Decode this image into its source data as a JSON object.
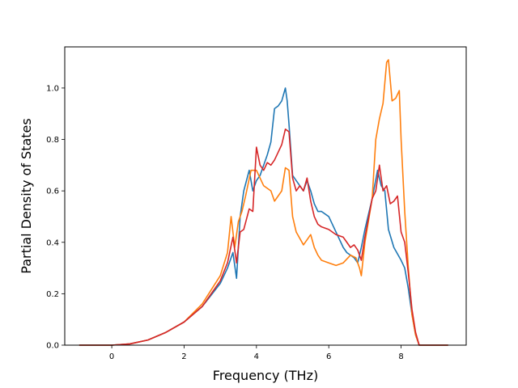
{
  "chart_data": {
    "type": "line",
    "title": "",
    "xlabel": "Frequency (THz)",
    "ylabel": "Partial Density of States",
    "xlim": [
      -1.3,
      9.8
    ],
    "ylim": [
      0.0,
      1.16
    ],
    "x_ticks": [
      0,
      2,
      4,
      6,
      8
    ],
    "x_tick_labels": [
      "0",
      "2",
      "4",
      "6",
      "8"
    ],
    "y_ticks": [
      0.0,
      0.2,
      0.4,
      0.6,
      0.8,
      1.0
    ],
    "y_tick_labels": [
      "0.0",
      "0.2",
      "0.4",
      "0.6",
      "0.8",
      "1.0"
    ],
    "grid": false,
    "legend": "none",
    "series": [
      {
        "color": "#1f77b4",
        "x": [
          -0.9,
          0.0,
          0.5,
          1.0,
          1.5,
          2.0,
          2.5,
          3.0,
          3.2,
          3.35,
          3.45,
          3.55,
          3.65,
          3.8,
          3.9,
          4.0,
          4.1,
          4.2,
          4.3,
          4.4,
          4.5,
          4.6,
          4.7,
          4.8,
          4.85,
          4.9,
          5.0,
          5.1,
          5.2,
          5.3,
          5.4,
          5.5,
          5.6,
          5.7,
          5.8,
          6.0,
          6.2,
          6.4,
          6.5,
          6.6,
          6.7,
          6.8,
          6.9,
          7.0,
          7.2,
          7.35,
          7.45,
          7.55,
          7.65,
          7.8,
          8.0,
          8.1,
          8.2,
          8.3,
          8.4,
          8.5,
          9.3
        ],
        "y": [
          0.0,
          0.0,
          0.005,
          0.02,
          0.05,
          0.09,
          0.15,
          0.24,
          0.3,
          0.36,
          0.26,
          0.5,
          0.6,
          0.68,
          0.6,
          0.64,
          0.66,
          0.7,
          0.74,
          0.79,
          0.92,
          0.93,
          0.95,
          1.0,
          0.95,
          0.86,
          0.66,
          0.64,
          0.62,
          0.6,
          0.64,
          0.6,
          0.55,
          0.52,
          0.52,
          0.5,
          0.44,
          0.38,
          0.36,
          0.35,
          0.34,
          0.32,
          0.38,
          0.45,
          0.57,
          0.68,
          0.62,
          0.6,
          0.45,
          0.38,
          0.33,
          0.3,
          0.22,
          0.12,
          0.04,
          0.0,
          0.0
        ]
      },
      {
        "color": "#ff7f0e",
        "x": [
          -0.9,
          0.0,
          0.5,
          1.0,
          1.5,
          2.0,
          2.5,
          3.0,
          3.2,
          3.3,
          3.4,
          3.5,
          3.6,
          3.7,
          3.85,
          4.0,
          4.2,
          4.4,
          4.5,
          4.6,
          4.7,
          4.8,
          4.9,
          5.0,
          5.1,
          5.3,
          5.5,
          5.6,
          5.7,
          5.8,
          6.0,
          6.2,
          6.4,
          6.6,
          6.75,
          6.85,
          6.9,
          7.0,
          7.2,
          7.3,
          7.4,
          7.5,
          7.6,
          7.65,
          7.75,
          7.85,
          7.95,
          8.0,
          8.1,
          8.2,
          8.3,
          8.4,
          8.5,
          9.3
        ],
        "y": [
          0.0,
          0.0,
          0.005,
          0.02,
          0.05,
          0.09,
          0.16,
          0.27,
          0.36,
          0.5,
          0.38,
          0.48,
          0.52,
          0.58,
          0.68,
          0.68,
          0.62,
          0.6,
          0.56,
          0.58,
          0.6,
          0.69,
          0.68,
          0.5,
          0.44,
          0.39,
          0.43,
          0.38,
          0.35,
          0.33,
          0.32,
          0.31,
          0.32,
          0.35,
          0.34,
          0.3,
          0.27,
          0.4,
          0.57,
          0.8,
          0.88,
          0.94,
          1.1,
          1.11,
          0.95,
          0.96,
          0.99,
          0.8,
          0.52,
          0.3,
          0.12,
          0.04,
          0.0,
          0.0
        ]
      },
      {
        "color": "#d62728",
        "x": [
          -0.9,
          0.0,
          0.5,
          1.0,
          1.5,
          2.0,
          2.5,
          3.0,
          3.2,
          3.35,
          3.45,
          3.55,
          3.65,
          3.8,
          3.9,
          4.0,
          4.1,
          4.2,
          4.3,
          4.4,
          4.5,
          4.6,
          4.7,
          4.8,
          4.9,
          5.0,
          5.1,
          5.2,
          5.3,
          5.4,
          5.5,
          5.6,
          5.7,
          5.8,
          6.0,
          6.2,
          6.4,
          6.5,
          6.6,
          6.7,
          6.8,
          6.9,
          7.0,
          7.2,
          7.3,
          7.4,
          7.5,
          7.6,
          7.7,
          7.8,
          7.9,
          8.0,
          8.1,
          8.2,
          8.3,
          8.4,
          8.5,
          9.3
        ],
        "y": [
          0.0,
          0.0,
          0.005,
          0.02,
          0.05,
          0.09,
          0.15,
          0.25,
          0.32,
          0.42,
          0.32,
          0.44,
          0.45,
          0.53,
          0.52,
          0.77,
          0.7,
          0.68,
          0.71,
          0.7,
          0.72,
          0.75,
          0.78,
          0.84,
          0.83,
          0.65,
          0.6,
          0.62,
          0.6,
          0.65,
          0.56,
          0.5,
          0.47,
          0.46,
          0.45,
          0.43,
          0.42,
          0.4,
          0.38,
          0.39,
          0.37,
          0.33,
          0.42,
          0.57,
          0.6,
          0.7,
          0.6,
          0.62,
          0.55,
          0.56,
          0.58,
          0.44,
          0.4,
          0.28,
          0.14,
          0.05,
          0.0,
          0.0
        ]
      }
    ]
  }
}
